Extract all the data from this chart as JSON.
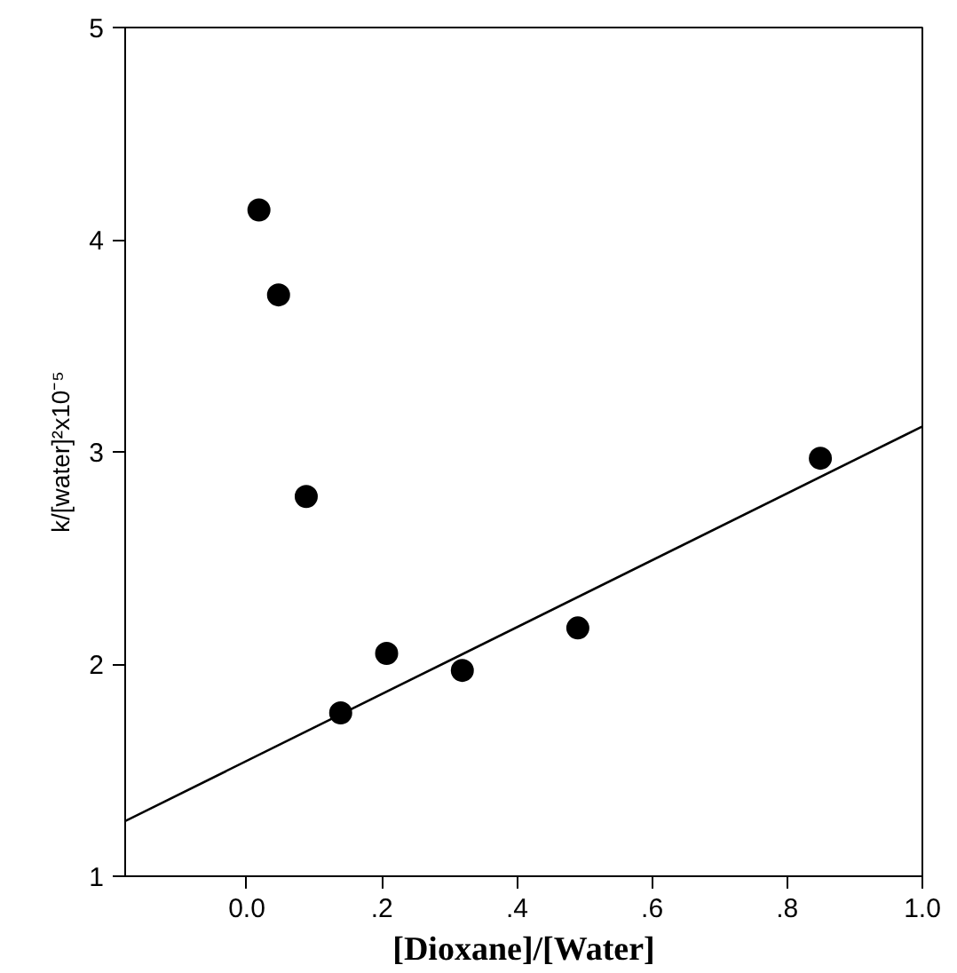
{
  "chart_data": {
    "type": "scatter",
    "xlabel": "[Dioxane]/[Water]",
    "ylabel": "k/[water]²x10⁻⁵",
    "xlim": [
      -0.18,
      1.0
    ],
    "ylim": [
      1,
      5
    ],
    "xticks": [
      {
        "value": 0,
        "label": "0.0"
      },
      {
        "value": 0.2,
        "label": ".2"
      },
      {
        "value": 0.4,
        "label": ".4"
      },
      {
        "value": 0.6,
        "label": ".6"
      },
      {
        "value": 0.8,
        "label": ".8"
      },
      {
        "value": 1.0,
        "label": "1.0"
      }
    ],
    "yticks": [
      1,
      2,
      3,
      4,
      5
    ],
    "grid": false,
    "marker": "circle",
    "series": [
      {
        "color": "#000000",
        "x": [
          0.018,
          0.047,
          0.088,
          0.139,
          0.207,
          0.319,
          0.49,
          0.849
        ],
        "values": [
          4.14,
          3.74,
          2.79,
          1.77,
          2.05,
          1.97,
          2.17,
          2.97
        ]
      },
      {
        "type": "line",
        "marker": "none",
        "color": "#000000",
        "x": [
          -0.18,
          1.0
        ],
        "values": [
          1.26,
          3.12
        ]
      }
    ]
  }
}
